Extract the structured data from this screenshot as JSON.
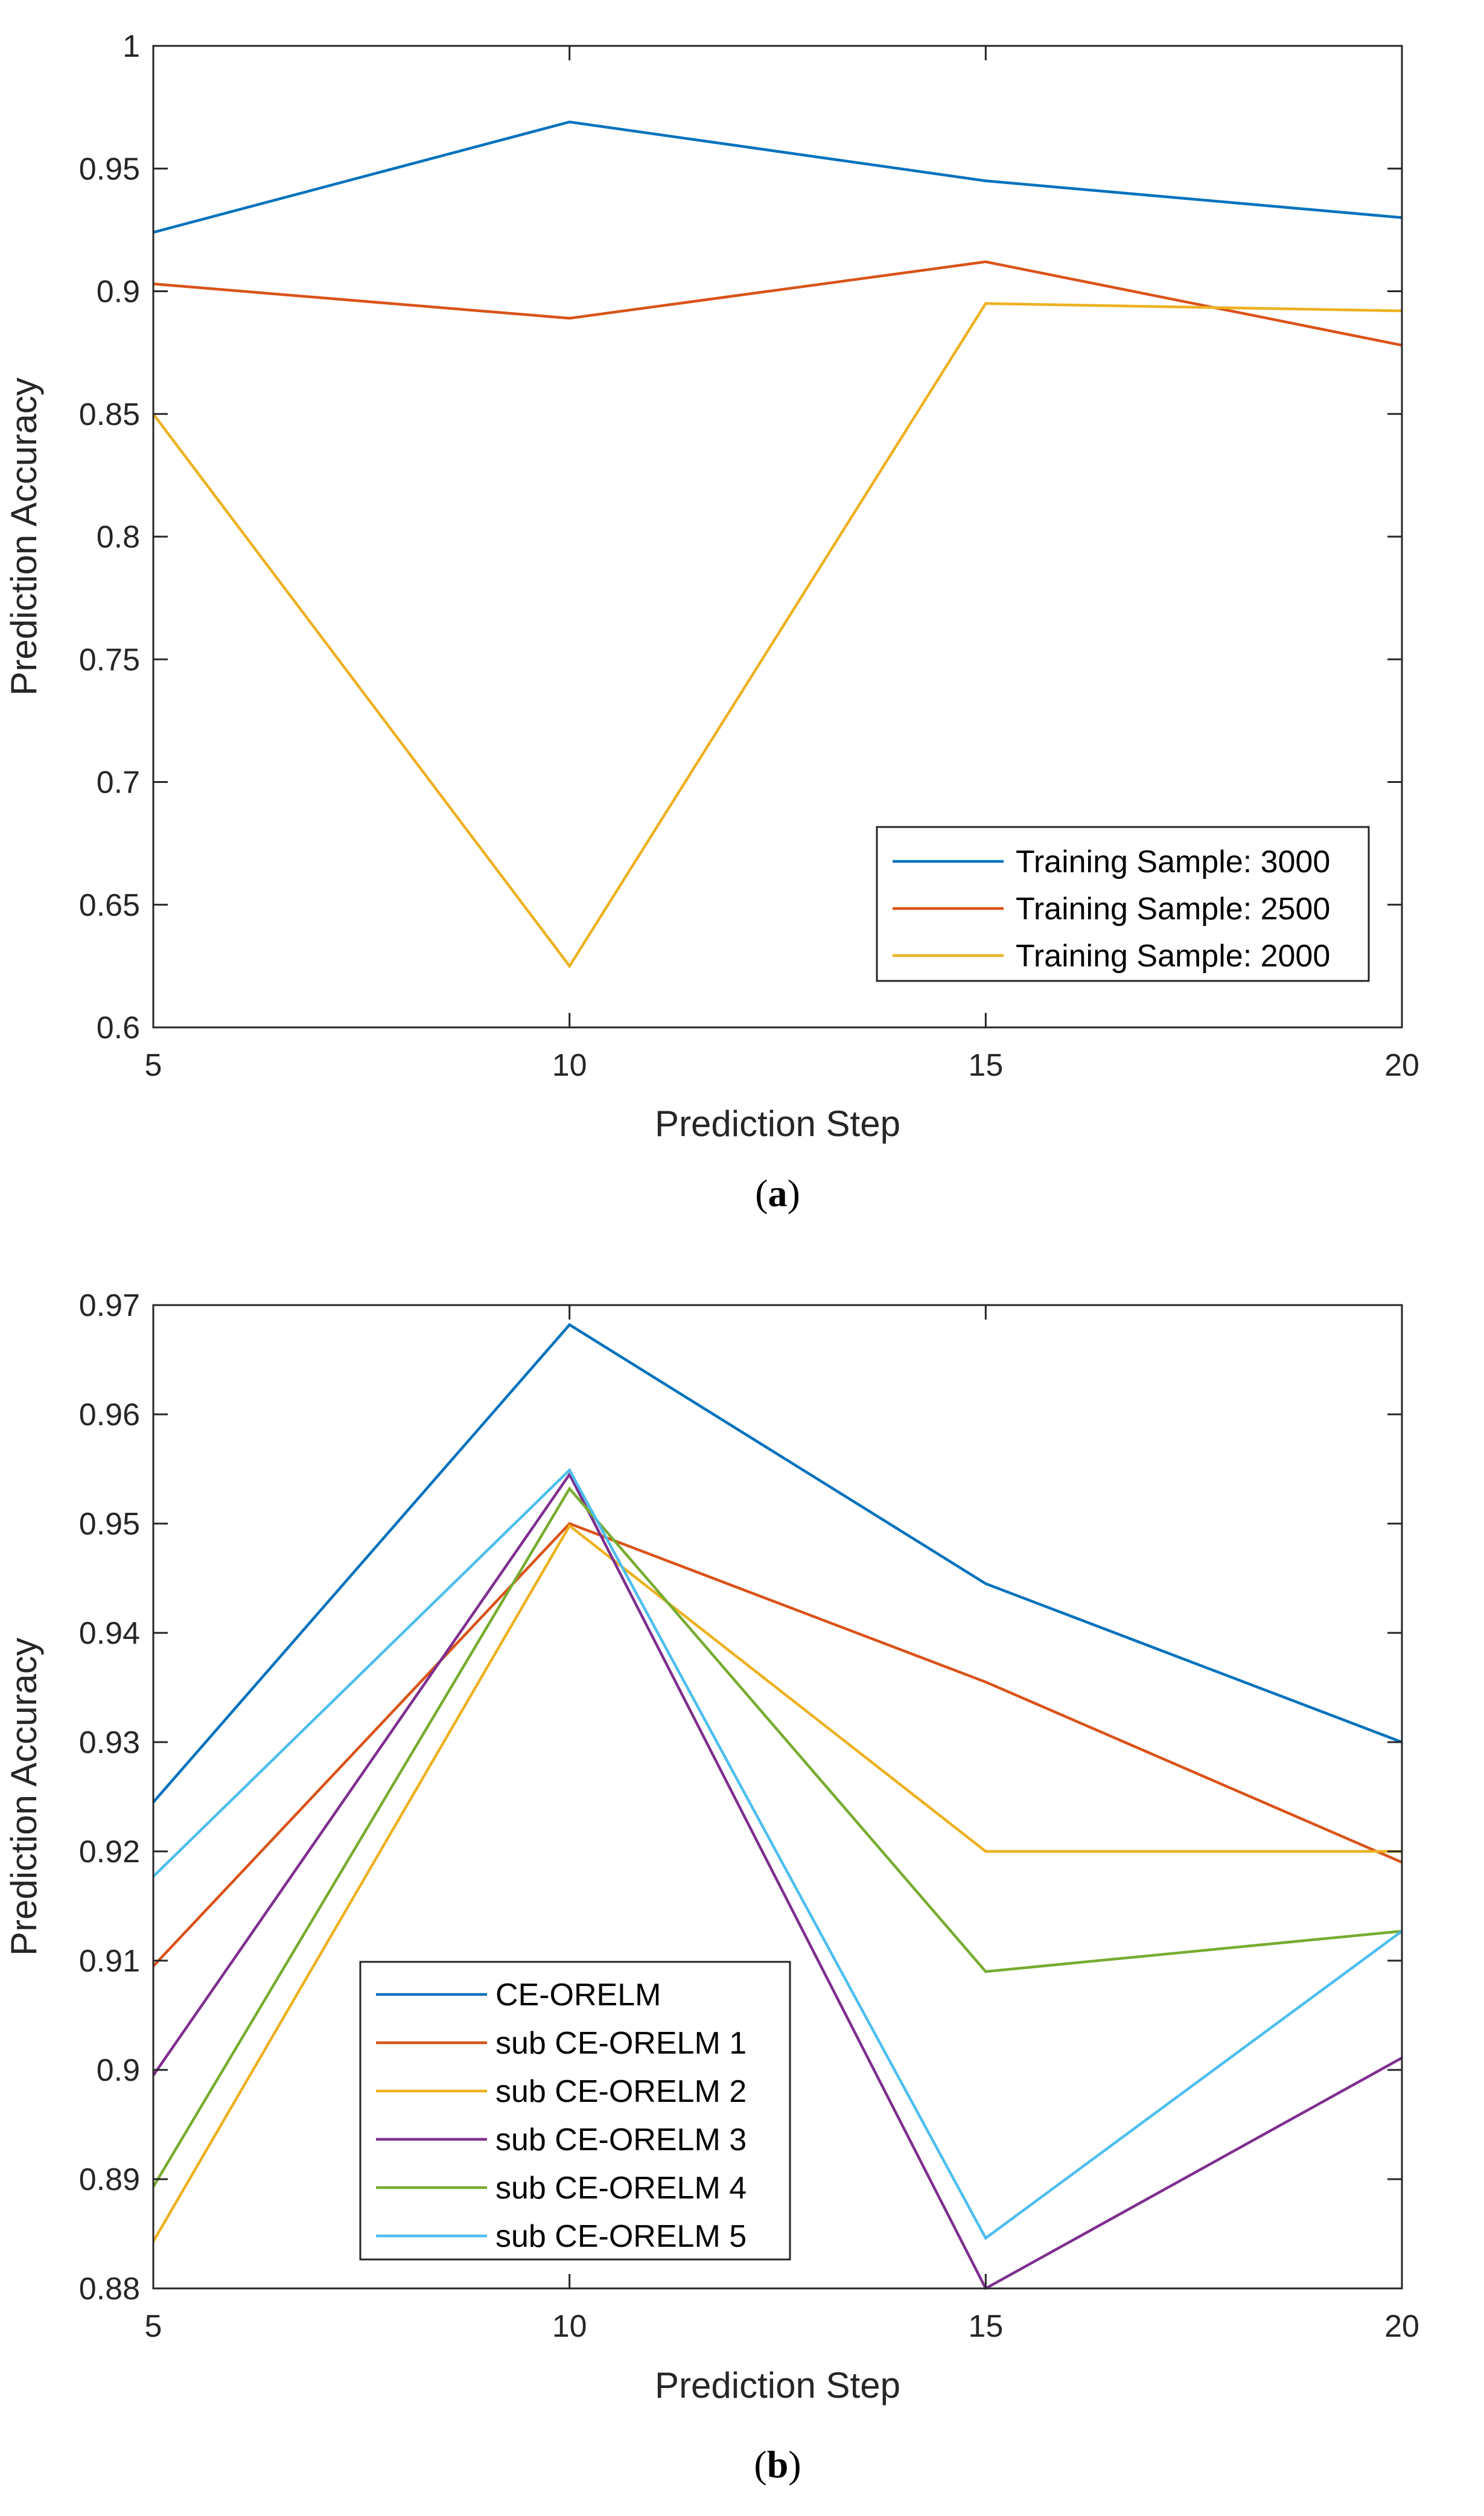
{
  "chart_data": [
    {
      "type": "line",
      "panel": "a",
      "caption": {
        "open": "(",
        "letter": "a",
        "close": ")"
      },
      "xlabel": "Prediction Step",
      "ylabel": "Prediction Accuracy",
      "xlim": [
        5,
        20
      ],
      "ylim": [
        0.6,
        1
      ],
      "xticks": [
        5,
        10,
        15,
        20
      ],
      "xtick_labels": [
        "5",
        "10",
        "15",
        "20"
      ],
      "yticks": [
        0.6,
        0.65,
        0.7,
        0.75,
        0.8,
        0.85,
        0.9,
        0.95,
        1
      ],
      "ytick_labels": [
        "0.6",
        "0.65",
        "0.7",
        "0.75",
        "0.8",
        "0.85",
        "0.9",
        "0.95",
        "1"
      ],
      "grid": false,
      "legend_position": "bottom-right",
      "x": [
        5,
        10,
        15,
        20
      ],
      "series": [
        {
          "name": "Training Sample: 3000",
          "color": "#0072BD",
          "values": [
            0.924,
            0.969,
            0.945,
            0.93
          ]
        },
        {
          "name": "Training Sample: 2500",
          "color": "#D95319",
          "values": [
            0.903,
            0.889,
            0.912,
            0.878
          ]
        },
        {
          "name": "Training Sample: 2000",
          "color": "#EDB120",
          "values": [
            0.85,
            0.625,
            0.895,
            0.892
          ]
        }
      ]
    },
    {
      "type": "line",
      "panel": "b",
      "caption": {
        "open": "(",
        "letter": "b",
        "close": ")"
      },
      "xlabel": "Prediction Step",
      "ylabel": "Prediction Accuracy",
      "xlim": [
        5,
        20
      ],
      "ylim": [
        0.88,
        0.97
      ],
      "xticks": [
        5,
        10,
        15,
        20
      ],
      "xtick_labels": [
        "5",
        "10",
        "15",
        "20"
      ],
      "yticks": [
        0.88,
        0.89,
        0.9,
        0.91,
        0.92,
        0.93,
        0.94,
        0.95,
        0.96,
        0.97
      ],
      "ytick_labels": [
        "0.88",
        "0.89",
        "0.9",
        "0.91",
        "0.92",
        "0.93",
        "0.94",
        "0.95",
        "0.96",
        "0.97"
      ],
      "grid": false,
      "legend_position": "bottom-left",
      "x": [
        5,
        10,
        15,
        20
      ],
      "series": [
        {
          "name": "CE-ORELM",
          "color": "#0072BD",
          "values": [
            0.9245,
            0.9682,
            0.9445,
            0.93
          ]
        },
        {
          "name": "sub CE-ORELM 1",
          "color": "#D95319",
          "values": [
            0.9095,
            0.95,
            0.9355,
            0.919
          ]
        },
        {
          "name": "sub CE-ORELM 2",
          "color": "#EDB120",
          "values": [
            0.8843,
            0.9498,
            0.92,
            0.92
          ]
        },
        {
          "name": "sub CE-ORELM 3",
          "color": "#7E2F8E",
          "values": [
            0.8995,
            0.9545,
            0.88,
            0.9011
          ]
        },
        {
          "name": "sub CE-ORELM 4",
          "color": "#77AC30",
          "values": [
            0.8893,
            0.9532,
            0.909,
            0.9127
          ]
        },
        {
          "name": "sub CE-ORELM 5",
          "color": "#4DBEEE",
          "values": [
            0.9177,
            0.9549,
            0.8846,
            0.9127
          ]
        }
      ]
    }
  ]
}
